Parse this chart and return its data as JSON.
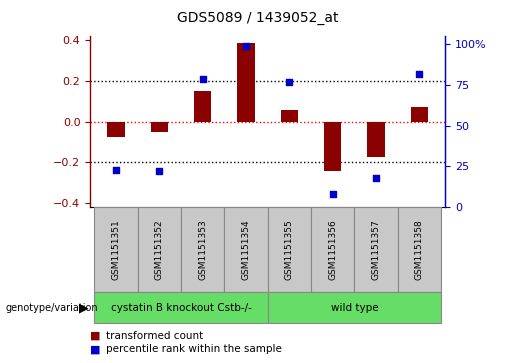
{
  "title": "GDS5089 / 1439052_at",
  "samples": [
    "GSM1151351",
    "GSM1151352",
    "GSM1151353",
    "GSM1151354",
    "GSM1151355",
    "GSM1151356",
    "GSM1151357",
    "GSM1151358"
  ],
  "bar_values": [
    -0.075,
    -0.05,
    0.15,
    0.385,
    0.055,
    -0.245,
    -0.175,
    0.072
  ],
  "scatter_values": [
    23,
    22,
    79,
    99,
    77,
    8,
    18,
    82
  ],
  "group1_label": "cystatin B knockout Cstb-/-",
  "group2_label": "wild type",
  "group1_count": 4,
  "group2_count": 4,
  "bar_color": "#8B0000",
  "scatter_color": "#0000CC",
  "group1_color": "#66DD66",
  "group2_color": "#66DD66",
  "sample_box_color": "#C8C8C8",
  "ylim_left": [
    -0.42,
    0.42
  ],
  "ylim_right": [
    0,
    105
  ],
  "yticks_left": [
    -0.4,
    -0.2,
    0.0,
    0.2,
    0.4
  ],
  "yticks_right": [
    0,
    25,
    50,
    75,
    100
  ],
  "ytick_labels_right": [
    "0",
    "25",
    "50",
    "75",
    "100%"
  ],
  "hlines_dotted": [
    -0.2,
    0.2
  ],
  "zero_line_color": "red",
  "dotted_line_color": "black",
  "legend_items": [
    "transformed count",
    "percentile rank within the sample"
  ],
  "genotype_label": "genotype/variation"
}
